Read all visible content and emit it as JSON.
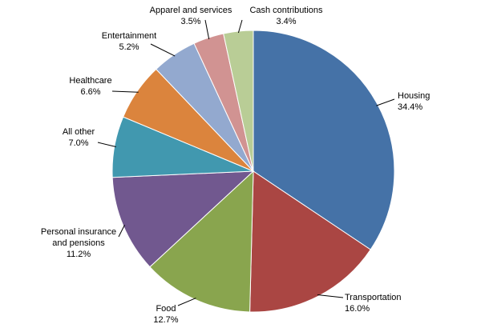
{
  "chart_data": {
    "type": "pie",
    "title": "",
    "start_angle_deg": 0,
    "direction": "clockwise",
    "unit": "%",
    "slices": [
      {
        "label_lines": [
          "Housing"
        ],
        "value": 34.4,
        "value_text": "34.4%",
        "color": "#4572A7"
      },
      {
        "label_lines": [
          "Transportation"
        ],
        "value": 16.0,
        "value_text": "16.0%",
        "color": "#AA4643"
      },
      {
        "label_lines": [
          "Food"
        ],
        "value": 12.7,
        "value_text": "12.7%",
        "color": "#89A54E"
      },
      {
        "label_lines": [
          "Personal insurance",
          "and pensions"
        ],
        "value": 11.2,
        "value_text": "11.2%",
        "color": "#71588F"
      },
      {
        "label_lines": [
          "All other"
        ],
        "value": 7.0,
        "value_text": "7.0%",
        "color": "#4198AF"
      },
      {
        "label_lines": [
          "Healthcare"
        ],
        "value": 6.6,
        "value_text": "6.6%",
        "color": "#DB843D"
      },
      {
        "label_lines": [
          "Entertainment"
        ],
        "value": 5.2,
        "value_text": "5.2%",
        "color": "#93A9CF"
      },
      {
        "label_lines": [
          "Apparel and services"
        ],
        "value": 3.5,
        "value_text": "3.5%",
        "color": "#D19392"
      },
      {
        "label_lines": [
          "Cash contributions"
        ],
        "value": 3.4,
        "value_text": "3.4%",
        "color": "#B9CD96"
      }
    ]
  }
}
